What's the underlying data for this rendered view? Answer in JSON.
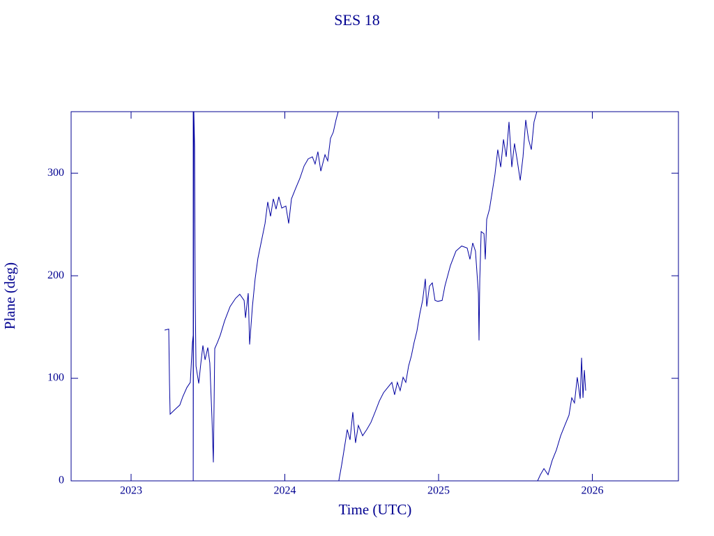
{
  "chart_data": {
    "type": "line",
    "title": "SES 18",
    "xlabel": "Time (UTC)",
    "ylabel": "Plane (deg)",
    "xlim": [
      2022.61,
      2026.56
    ],
    "ylim": [
      0,
      360
    ],
    "xticks": [
      2023,
      2024,
      2025,
      2026
    ],
    "yticks": [
      0,
      100,
      200,
      300
    ],
    "series": [
      {
        "name": "SES 18",
        "color": "#0000a0",
        "x": [
          2023.218,
          2023.245,
          2023.25,
          2023.254,
          2023.281,
          2023.317,
          2023.336,
          2023.363,
          2023.385,
          2023.399,
          2023.404,
          2023.404,
          2023.404,
          2023.408,
          2023.413,
          2023.417,
          2023.422,
          2023.44,
          2023.454,
          2023.467,
          2023.481,
          2023.499,
          2023.512,
          2023.526,
          2023.535,
          2023.544,
          2023.562,
          2023.58,
          2023.608,
          2023.644,
          2023.68,
          2023.707,
          2023.735,
          2023.744,
          2023.762,
          2023.771,
          2023.789,
          2023.807,
          2023.825,
          2023.848,
          2023.871,
          2023.889,
          2023.907,
          2023.925,
          2023.943,
          2023.961,
          2023.98,
          2024.007,
          2024.025,
          2024.043,
          2024.07,
          2024.098,
          2024.125,
          2024.152,
          2024.179,
          2024.197,
          2024.215,
          2024.234,
          2024.261,
          2024.279,
          2024.297,
          2024.315,
          2024.333,
          2024.347,
          null,
          2024.351,
          2024.37,
          2024.388,
          2024.406,
          2024.424,
          2024.442,
          2024.46,
          2024.478,
          2024.506,
          2024.533,
          2024.56,
          2024.587,
          2024.615,
          2024.642,
          2024.669,
          2024.696,
          2024.714,
          2024.732,
          2024.75,
          2024.769,
          2024.787,
          2024.805,
          2024.823,
          2024.841,
          2024.859,
          2024.878,
          2024.896,
          2024.914,
          2024.923,
          2024.941,
          2024.959,
          2024.977,
          2024.995,
          2025.023,
          2025.041,
          2025.077,
          2025.113,
          2025.15,
          2025.186,
          2025.204,
          2025.222,
          2025.24,
          2025.259,
          2025.263,
          2025.268,
          2025.277,
          2025.295,
          2025.304,
          2025.313,
          2025.331,
          2025.349,
          2025.367,
          2025.385,
          2025.404,
          2025.422,
          2025.44,
          2025.458,
          2025.476,
          2025.494,
          2025.512,
          2025.531,
          2025.549,
          2025.567,
          2025.585,
          2025.603,
          2025.621,
          2025.639,
          null,
          2025.644,
          2025.662,
          2025.685,
          2025.712,
          2025.739,
          2025.766,
          2025.794,
          2025.821,
          2025.848,
          2025.866,
          2025.884,
          2025.902,
          2025.921,
          2025.93,
          2025.939,
          2025.948,
          2025.957
        ],
        "values": [
          147,
          148,
          95,
          65,
          69,
          74,
          82,
          91,
          96,
          135,
          142,
          360,
          0,
          360,
          326,
          183,
          112,
          95,
          115,
          132,
          118,
          130,
          115,
          61,
          18,
          129,
          135,
          142,
          156,
          170,
          178,
          182,
          176,
          159,
          183,
          133,
          170,
          197,
          217,
          234,
          251,
          272,
          258,
          275,
          265,
          277,
          266,
          268,
          251,
          275,
          285,
          295,
          307,
          314,
          316,
          309,
          321,
          302,
          318,
          312,
          334,
          340,
          352,
          360,
          null,
          0,
          16,
          33,
          50,
          40,
          67,
          37,
          54,
          44,
          50,
          57,
          67,
          78,
          86,
          91,
          96,
          84,
          96,
          88,
          101,
          96,
          112,
          122,
          135,
          146,
          163,
          176,
          197,
          170,
          190,
          193,
          176,
          175,
          176,
          190,
          210,
          224,
          229,
          227,
          216,
          232,
          224,
          183,
          137,
          197,
          243,
          241,
          216,
          255,
          265,
          282,
          299,
          323,
          306,
          333,
          316,
          350,
          306,
          329,
          312,
          293,
          316,
          352,
          333,
          323,
          350,
          360,
          null,
          0,
          6,
          12,
          6,
          20,
          30,
          44,
          54,
          64,
          81,
          76,
          101,
          80,
          120,
          81,
          108,
          88
        ]
      }
    ]
  }
}
